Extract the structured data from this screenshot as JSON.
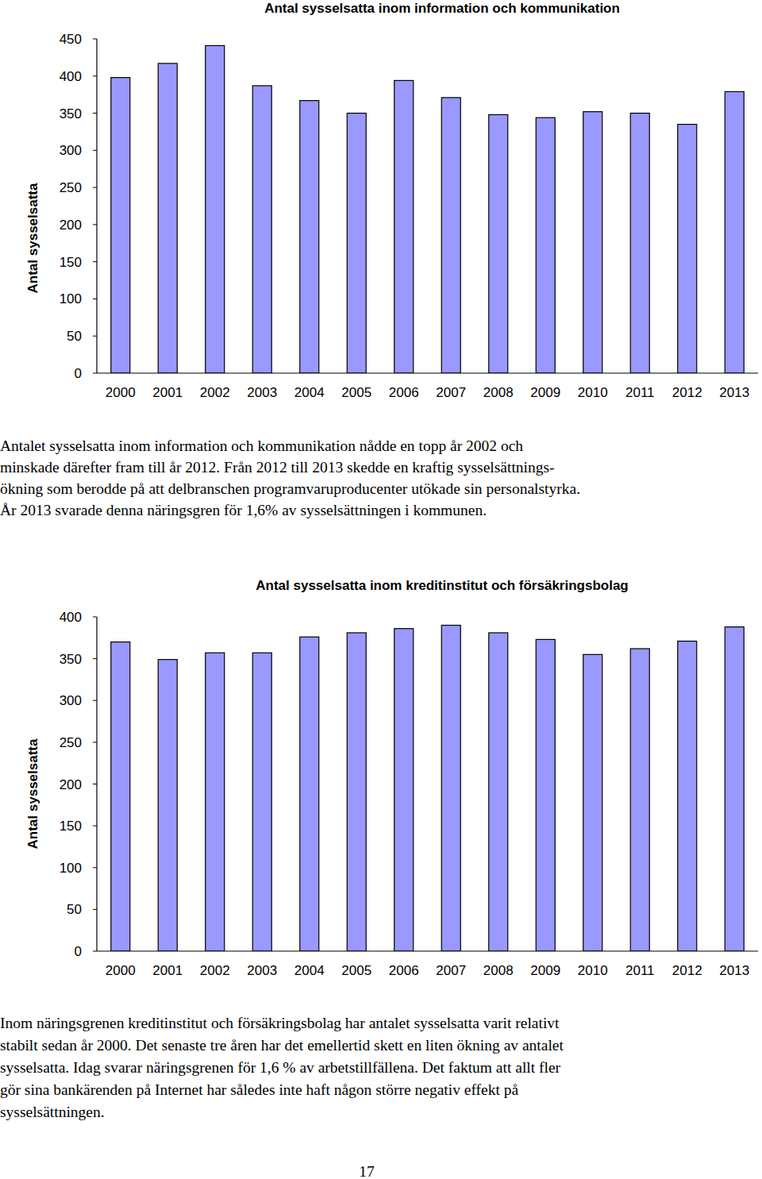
{
  "chart_data": [
    {
      "type": "bar",
      "title": "Antal sysselsatta inom information och kommunikation",
      "ylabel": "Antal sysselsatta",
      "categories": [
        "2000",
        "2001",
        "2002",
        "2003",
        "2004",
        "2005",
        "2006",
        "2007",
        "2008",
        "2009",
        "2010",
        "2011",
        "2012",
        "2013"
      ],
      "values": [
        398,
        417,
        441,
        387,
        367,
        350,
        394,
        371,
        348,
        344,
        352,
        350,
        335,
        379
      ],
      "color": "#9999ff",
      "ylim": [
        0,
        450
      ],
      "yticks": [
        0,
        50,
        100,
        150,
        200,
        250,
        300,
        350,
        400,
        450
      ],
      "grid": false
    },
    {
      "type": "bar",
      "title": "Antal sysselsatta inom kreditinstitut och försäkringsbolag",
      "ylabel": "Antal sysselsatta",
      "categories": [
        "2000",
        "2001",
        "2002",
        "2003",
        "2004",
        "2005",
        "2006",
        "2007",
        "2008",
        "2009",
        "2010",
        "2011",
        "2012",
        "2013"
      ],
      "values": [
        370,
        349,
        357,
        357,
        376,
        381,
        386,
        390,
        381,
        373,
        355,
        362,
        371,
        388
      ],
      "color": "#9999ff",
      "ylim": [
        0,
        400
      ],
      "yticks": [
        0,
        50,
        100,
        150,
        200,
        250,
        300,
        350,
        400
      ],
      "grid": false
    }
  ],
  "paragraphs": [
    [
      "Antalet sysselsatta inom information och kommunikation nådde en topp år 2002 och",
      "minskade därefter fram till år 2012. Från 2012 till 2013 skedde en kraftig sysselsättnings-",
      "ökning som berodde på att delbranschen programvaruproducenter utökade sin personalstyrka.",
      "År 2013 svarade denna näringsgren för 1,6% av sysselsättningen i kommunen."
    ],
    [
      "Inom näringsgrenen kreditinstitut och försäkringsbolag har antalet sysselsatta varit relativt",
      "stabilt sedan år 2000. Det senaste tre åren har det emellertid skett en liten ökning av antalet",
      "sysselsatta. Idag svarar näringsgrenen för 1,6 % av arbetstillfällena. Det faktum att allt fler",
      "gör sina bankärenden på Internet har således inte haft någon större negativ effekt på",
      "sysselsättningen."
    ]
  ],
  "page_number": "17"
}
